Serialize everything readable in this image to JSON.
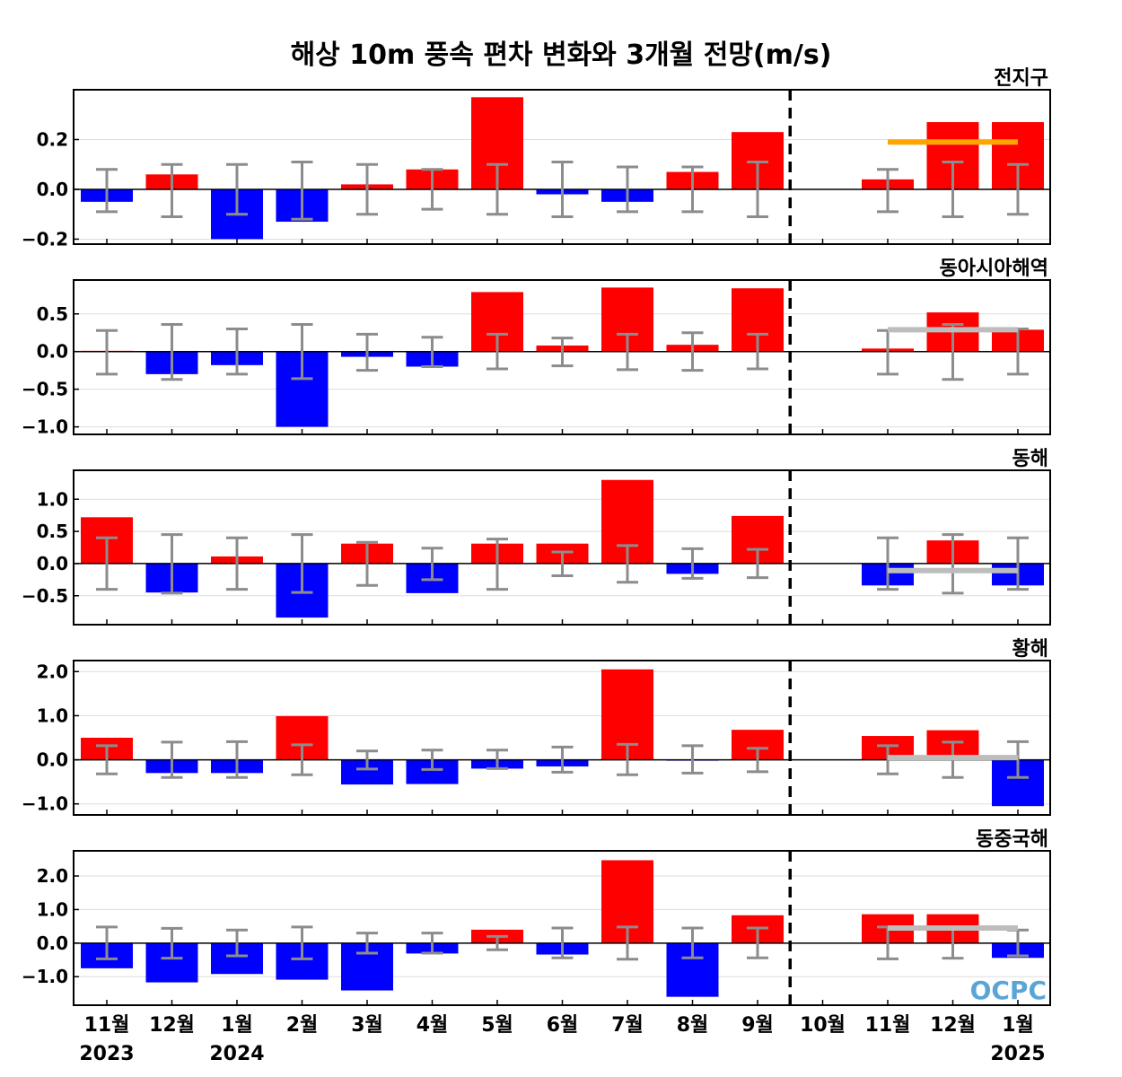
{
  "title": "해상 10m 풍속 편차 변화와 3개월 전망(m/s)",
  "logo": "OCPC",
  "colors": {
    "positive": "#ff0000",
    "negative": "#0000ff",
    "error_bar": "#8c8c8c",
    "forecast_global": "#ffa500",
    "forecast_regional": "#bdbdbd"
  },
  "chart_data": [
    {
      "type": "bar",
      "region": "전지구",
      "categories": [
        "11월",
        "12월",
        "1월",
        "2월",
        "3월",
        "4월",
        "5월",
        "6월",
        "7월",
        "8월",
        "9월",
        "10월",
        "11월",
        "12월",
        "1월"
      ],
      "values": [
        -0.05,
        0.06,
        -0.2,
        -0.13,
        0.02,
        0.08,
        0.37,
        -0.02,
        -0.05,
        0.07,
        0.23,
        0.0,
        0.04,
        0.27,
        0.27
      ],
      "error_lower": [
        -0.09,
        -0.11,
        -0.1,
        -0.12,
        -0.1,
        -0.08,
        -0.1,
        -0.11,
        -0.09,
        -0.09,
        -0.11,
        null,
        -0.09,
        -0.11,
        -0.1
      ],
      "error_upper": [
        0.08,
        0.1,
        0.1,
        0.11,
        0.1,
        0.08,
        0.1,
        0.11,
        0.09,
        0.09,
        0.11,
        null,
        0.08,
        0.11,
        0.1
      ],
      "forecast_line": {
        "from": "11월",
        "to": "1월",
        "value": 0.19
      },
      "yticks": [
        -0.2,
        0.0,
        0.2
      ],
      "yticklabels": [
        "−0.2",
        "0.0",
        "0.2"
      ],
      "ylim": [
        -0.22,
        0.4
      ]
    },
    {
      "type": "bar",
      "region": "동아시아해역",
      "categories": [
        "11월",
        "12월",
        "1월",
        "2월",
        "3월",
        "4월",
        "5월",
        "6월",
        "7월",
        "8월",
        "9월",
        "10월",
        "11월",
        "12월",
        "1월"
      ],
      "values": [
        0.01,
        -0.3,
        -0.18,
        -1.0,
        -0.07,
        -0.2,
        0.79,
        0.08,
        0.85,
        0.09,
        0.84,
        0.0,
        0.04,
        0.52,
        0.29
      ],
      "error_lower": [
        -0.3,
        -0.37,
        -0.3,
        -0.36,
        -0.25,
        -0.2,
        -0.23,
        -0.19,
        -0.24,
        -0.25,
        -0.23,
        null,
        -0.3,
        -0.37,
        -0.3
      ],
      "error_upper": [
        0.28,
        0.36,
        0.3,
        0.36,
        0.23,
        0.19,
        0.23,
        0.18,
        0.23,
        0.25,
        0.23,
        null,
        0.28,
        0.36,
        0.3
      ],
      "forecast_line": {
        "from": "11월",
        "to": "1월",
        "value": 0.29
      },
      "yticks": [
        -1.0,
        -0.5,
        0.0,
        0.5
      ],
      "yticklabels": [
        "−1.0",
        "−0.5",
        "0.0",
        "0.5"
      ],
      "ylim": [
        -1.1,
        0.95
      ]
    },
    {
      "type": "bar",
      "region": "동해",
      "categories": [
        "11월",
        "12월",
        "1월",
        "2월",
        "3월",
        "4월",
        "5월",
        "6월",
        "7월",
        "8월",
        "9월",
        "10월",
        "11월",
        "12월",
        "1월"
      ],
      "values": [
        0.72,
        -0.45,
        0.11,
        -0.84,
        0.31,
        -0.46,
        0.31,
        0.31,
        1.3,
        -0.16,
        0.74,
        0.0,
        -0.34,
        0.36,
        -0.34
      ],
      "error_lower": [
        -0.4,
        -0.46,
        -0.4,
        -0.45,
        -0.34,
        -0.25,
        -0.4,
        -0.19,
        -0.29,
        -0.23,
        -0.22,
        null,
        -0.4,
        -0.46,
        -0.4
      ],
      "error_upper": [
        0.4,
        0.45,
        0.4,
        0.45,
        0.33,
        0.24,
        0.38,
        0.18,
        0.28,
        0.23,
        0.22,
        null,
        0.4,
        0.45,
        0.4
      ],
      "forecast_line": {
        "from": "11월",
        "to": "1월",
        "value": -0.11
      },
      "yticks": [
        -0.5,
        0.0,
        0.5,
        1.0
      ],
      "yticklabels": [
        "−0.5",
        "0.0",
        "0.5",
        "1.0"
      ],
      "ylim": [
        -0.95,
        1.45
      ]
    },
    {
      "type": "bar",
      "region": "황해",
      "categories": [
        "11월",
        "12월",
        "1월",
        "2월",
        "3월",
        "4월",
        "5월",
        "6월",
        "7월",
        "8월",
        "9월",
        "10월",
        "11월",
        "12월",
        "1월"
      ],
      "values": [
        0.5,
        -0.3,
        -0.3,
        0.99,
        -0.56,
        -0.55,
        -0.2,
        -0.15,
        2.05,
        -0.02,
        0.68,
        0.0,
        0.54,
        0.67,
        -1.05
      ],
      "error_lower": [
        -0.32,
        -0.4,
        -0.4,
        -0.34,
        -0.21,
        -0.22,
        -0.2,
        -0.28,
        -0.34,
        -0.3,
        -0.27,
        null,
        -0.32,
        -0.4,
        -0.4
      ],
      "error_upper": [
        0.32,
        0.4,
        0.41,
        0.34,
        0.2,
        0.22,
        0.22,
        0.29,
        0.35,
        0.32,
        0.26,
        null,
        0.32,
        0.4,
        0.41
      ],
      "forecast_line": {
        "from": "11월",
        "to": "1월",
        "value": 0.05
      },
      "yticks": [
        -1.0,
        0.0,
        1.0,
        2.0
      ],
      "yticklabels": [
        "−1.0",
        "0.0",
        "1.0",
        "2.0"
      ],
      "ylim": [
        -1.25,
        2.25
      ]
    },
    {
      "type": "bar",
      "region": "동중국해",
      "categories": [
        "11월",
        "12월",
        "1월",
        "2월",
        "3월",
        "4월",
        "5월",
        "6월",
        "7월",
        "8월",
        "9월",
        "10월",
        "11월",
        "12월",
        "1월"
      ],
      "values": [
        -0.75,
        -1.17,
        -0.92,
        -1.09,
        -1.41,
        -0.31,
        0.4,
        -0.34,
        2.47,
        -1.6,
        0.83,
        0.0,
        0.86,
        0.86,
        -0.44
      ],
      "error_lower": [
        -0.47,
        -0.45,
        -0.38,
        -0.47,
        -0.3,
        -0.3,
        -0.2,
        -0.44,
        -0.48,
        -0.44,
        -0.44,
        null,
        -0.47,
        -0.45,
        -0.38
      ],
      "error_upper": [
        0.48,
        0.44,
        0.39,
        0.48,
        0.3,
        0.3,
        0.2,
        0.45,
        0.48,
        0.45,
        0.45,
        null,
        0.48,
        0.44,
        0.39
      ],
      "forecast_line": {
        "from": "11월",
        "to": "1월",
        "value": 0.45
      },
      "yticks": [
        -1.0,
        0.0,
        1.0,
        2.0
      ],
      "yticklabels": [
        "−1.0",
        "0.0",
        "1.0",
        "2.0"
      ],
      "ylim": [
        -1.85,
        2.75
      ]
    }
  ],
  "x_axis": {
    "month_labels": [
      "11월",
      "12월",
      "1월",
      "2월",
      "3월",
      "4월",
      "5월",
      "6월",
      "7월",
      "8월",
      "9월",
      "10월",
      "11월",
      "12월",
      "1월"
    ],
    "year_labels": [
      {
        "index": 0,
        "text": "2023"
      },
      {
        "index": 2,
        "text": "2024"
      },
      {
        "index": 14,
        "text": "2025"
      }
    ],
    "divider_after": "10월"
  }
}
